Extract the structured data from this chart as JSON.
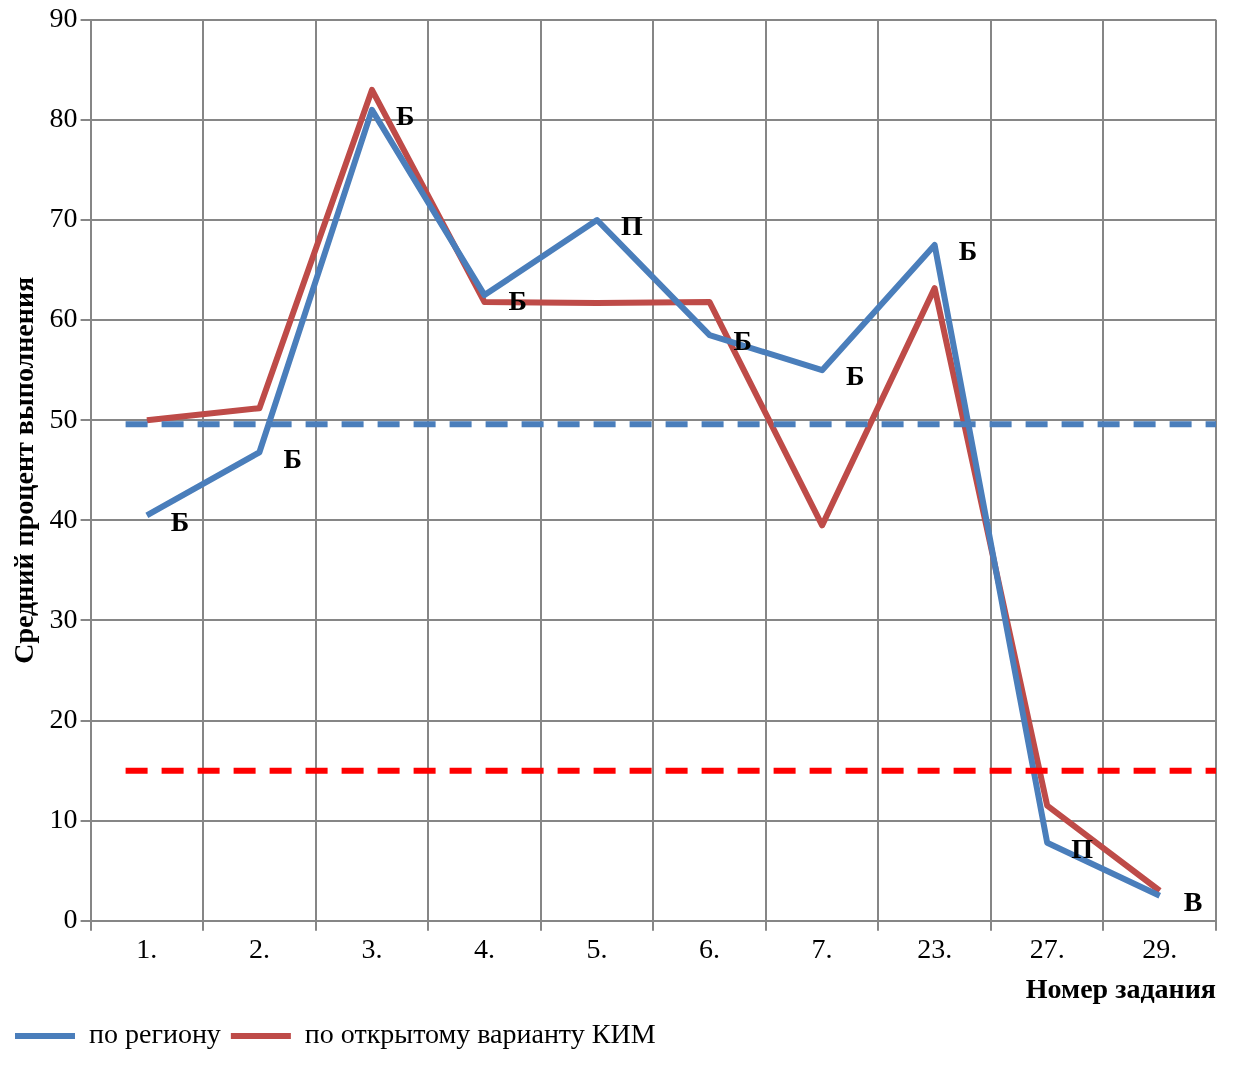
{
  "chart_data": {
    "type": "line",
    "xlabel": "Номер задания",
    "ylabel": "Средний процент выполнения",
    "categories": [
      "1.",
      "2.",
      "3.",
      "4.",
      "5.",
      "6.",
      "7.",
      "23.",
      "27.",
      "29."
    ],
    "series": [
      {
        "name": "по региону",
        "color": "#4a7ebb",
        "values": [
          40.5,
          46.8,
          81,
          62.5,
          70,
          58.5,
          55,
          67.5,
          7.8,
          2.5
        ]
      },
      {
        "name": "по открытому варианту КИМ",
        "color": "#be4b48",
        "values": [
          50,
          51.2,
          83,
          61.8,
          61.7,
          61.8,
          39.5,
          63.2,
          11.5,
          3
        ]
      }
    ],
    "ylim": [
      0,
      90
    ],
    "yticks": [
      0,
      10,
      20,
      30,
      40,
      50,
      60,
      70,
      80,
      90
    ],
    "grid": true,
    "legend": "bottom left",
    "marker": "none",
    "line_style": "solid",
    "ref_lines": [
      {
        "axis": "y",
        "value": 49.6,
        "color": "#4a7ebb",
        "line_style": "dashed"
      },
      {
        "axis": "y",
        "value": 15,
        "color": "#ff0000",
        "line_style": "dashed"
      }
    ],
    "annotations": [
      {
        "text": "Б",
        "x": "1.",
        "y": 40.5
      },
      {
        "text": "Б",
        "x": "2.",
        "y": 46.8
      },
      {
        "text": "Б",
        "x": "3.",
        "y": 81
      },
      {
        "text": "Б",
        "x": "4.",
        "y": 62.5
      },
      {
        "text": "П",
        "x": "5.",
        "y": 70
      },
      {
        "text": "Б",
        "x": "6.",
        "y": 58.5
      },
      {
        "text": "Б",
        "x": "7.",
        "y": 55
      },
      {
        "text": "Б",
        "x": "23.",
        "y": 67.5
      },
      {
        "text": "П",
        "x": "27.",
        "y": 7.8
      },
      {
        "text": "В",
        "x": "29.",
        "y": 2.5
      }
    ]
  }
}
